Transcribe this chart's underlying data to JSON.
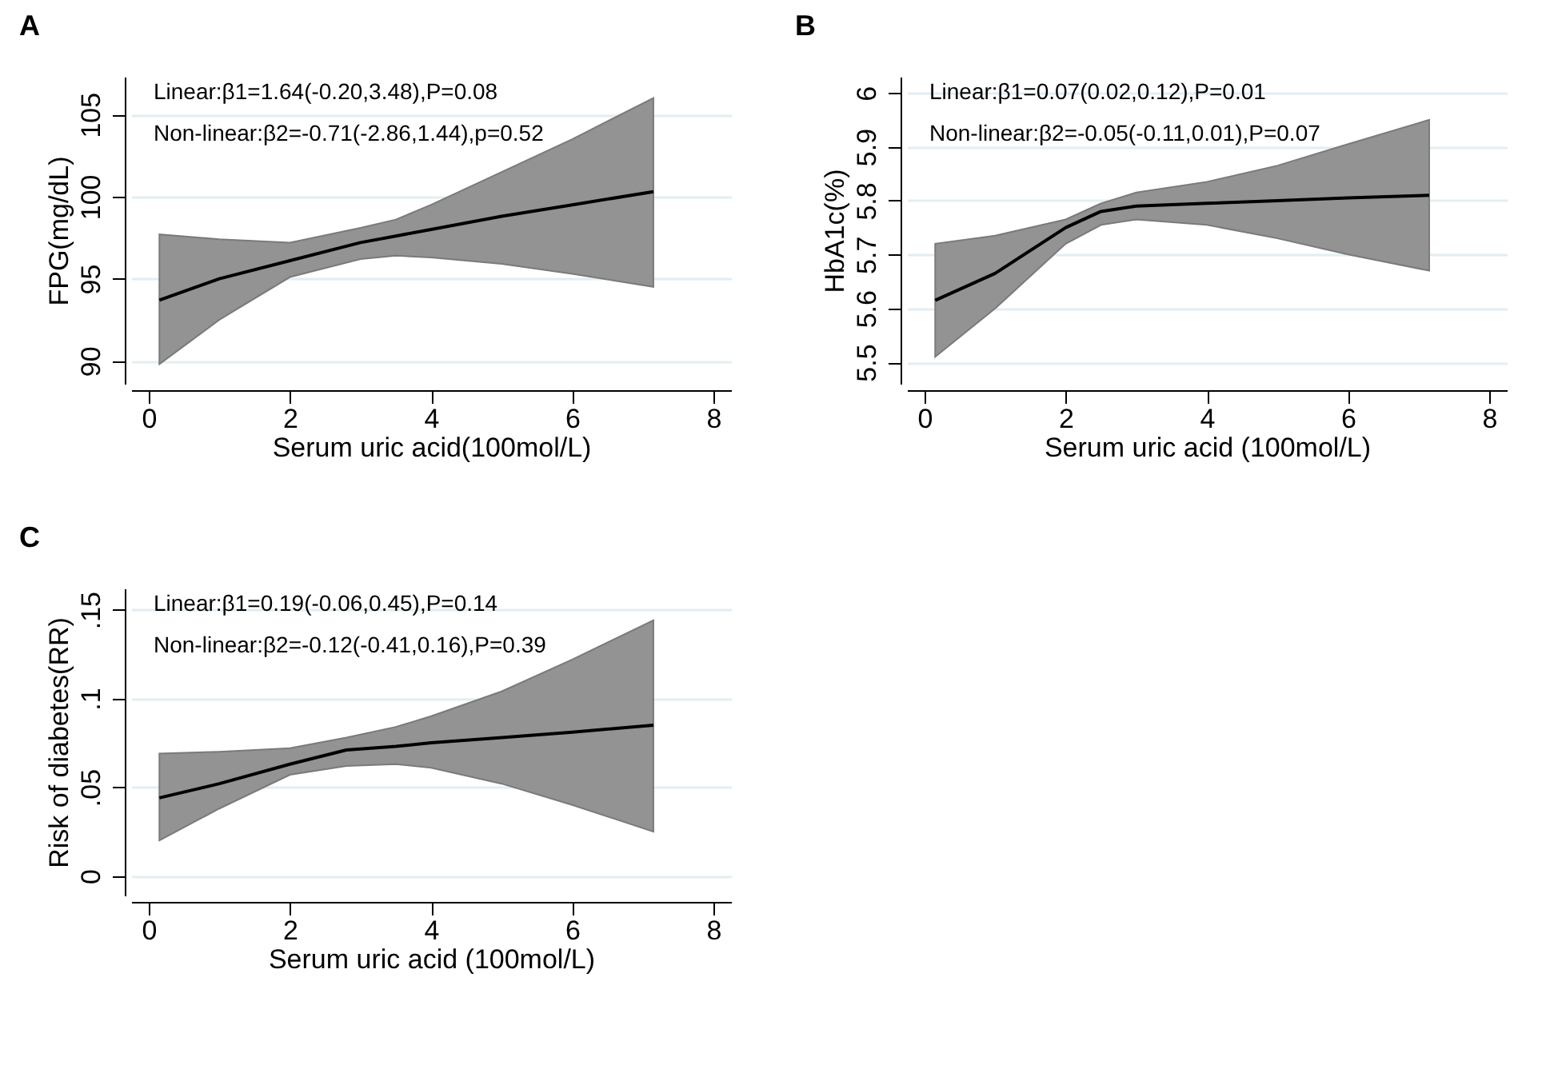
{
  "chart_data": [
    {
      "type": "line",
      "title": "A",
      "xlabel": "Serum uric acid(100mol/L)",
      "ylabel": "FPG(mg/dL)",
      "annotations": [
        "Linear:β1=1.64(-0.20,3.48),P=0.08",
        "Non-linear:β2=-0.71(-2.86,1.44),p=0.52"
      ],
      "xlim": [
        -0.25,
        8.25
      ],
      "xticks": [
        0,
        2,
        4,
        6,
        8
      ],
      "ylim": [
        88.6,
        107.3
      ],
      "yticks": [
        90,
        95,
        100,
        105
      ],
      "grid": "y",
      "series": [
        {
          "color": "#000000",
          "x": [
            0.15,
            1,
            2,
            3,
            3.5,
            4,
            5,
            6,
            7.15
          ],
          "values": [
            93.7,
            95,
            96.1,
            97.2,
            97.6,
            98,
            98.8,
            99.5,
            100.3
          ],
          "lower": [
            89.8,
            92.5,
            95.1,
            96.2,
            96.4,
            96.3,
            95.9,
            95.3,
            94.5
          ],
          "upper": [
            97.7,
            97.4,
            97.2,
            98.1,
            98.6,
            99.5,
            101.5,
            103.5,
            106.0
          ]
        }
      ]
    },
    {
      "type": "line",
      "title": "B",
      "xlabel": "Serum uric acid (100mol/L)",
      "ylabel": "HbA1c(%)",
      "annotations": [
        "Linear:β1=0.07(0.02,0.12),P=0.01",
        "Non-linear:β2=-0.05(-0.11,0.01),P=0.07"
      ],
      "xlim": [
        -0.25,
        8.25
      ],
      "xticks": [
        0,
        2,
        4,
        6,
        8
      ],
      "ylim": [
        5.46,
        6.03
      ],
      "yticks": [
        5.5,
        5.6,
        5.7,
        5.8,
        5.9,
        6
      ],
      "grid": "y",
      "series": [
        {
          "color": "#000000",
          "x": [
            0.15,
            1,
            2,
            2.5,
            3,
            4,
            5,
            6,
            7.15
          ],
          "values": [
            5.615,
            5.665,
            5.75,
            5.78,
            5.79,
            5.795,
            5.8,
            5.805,
            5.81
          ],
          "lower": [
            5.51,
            5.6,
            5.72,
            5.755,
            5.765,
            5.755,
            5.73,
            5.7,
            5.67
          ],
          "upper": [
            5.72,
            5.735,
            5.765,
            5.795,
            5.815,
            5.835,
            5.865,
            5.905,
            5.95
          ]
        }
      ]
    },
    {
      "type": "line",
      "title": "C",
      "xlabel": "Serum uric acid (100mol/L)",
      "ylabel": "Risk of diabetes(RR)",
      "annotations": [
        "Linear:β1=0.19(-0.06,0.45),P=0.14",
        "Non-linear:β2=-0.12(-0.41,0.16),P=0.39"
      ],
      "xlim": [
        -0.25,
        8.25
      ],
      "xticks": [
        0,
        2,
        4,
        6,
        8
      ],
      "ylim": [
        -0.011,
        0.162
      ],
      "yticks": [
        0,
        {
          "value": 0.05,
          "label": ".05"
        },
        {
          "value": 0.1,
          "label": ".1"
        },
        {
          "value": 0.15,
          "label": ".15"
        }
      ],
      "grid": "y",
      "series": [
        {
          "color": "#000000",
          "x": [
            0.15,
            1,
            2,
            2.8,
            3.5,
            4,
            5,
            6,
            7.15
          ],
          "values": [
            0.044,
            0.052,
            0.063,
            0.071,
            0.073,
            0.075,
            0.078,
            0.081,
            0.085
          ],
          "lower": [
            0.02,
            0.038,
            0.057,
            0.062,
            0.063,
            0.061,
            0.052,
            0.04,
            0.025
          ],
          "upper": [
            0.069,
            0.07,
            0.072,
            0.078,
            0.084,
            0.09,
            0.104,
            0.122,
            0.144
          ]
        }
      ]
    }
  ]
}
